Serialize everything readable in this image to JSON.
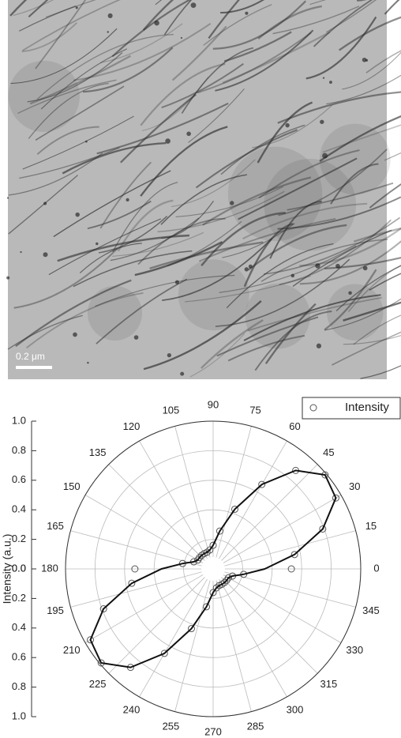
{
  "chart_data": {
    "type": "polar",
    "scale_bar": "0.2 μm",
    "y_label": "Intensity (a.u.)",
    "rlim": [
      0,
      1.0
    ],
    "rticks": [
      {
        "value": 0,
        "label": "0.0"
      },
      {
        "value": 0.2,
        "label": "0.2"
      },
      {
        "value": 0.4,
        "label": "0.4"
      },
      {
        "value": 0.6,
        "label": "0.6"
      },
      {
        "value": 0.8,
        "label": "0.8"
      },
      {
        "value": 1.0,
        "label": "1.0"
      }
    ],
    "thetaticks": [
      0,
      15,
      30,
      45,
      60,
      75,
      90,
      105,
      120,
      135,
      150,
      165,
      180,
      195,
      210,
      225,
      240,
      255,
      270,
      285,
      300,
      315,
      330,
      345
    ],
    "grid": true,
    "legend": "upper right",
    "theta": [
      0,
      10,
      20,
      30,
      40,
      50,
      60,
      70,
      80,
      90,
      100,
      110,
      120,
      130,
      140,
      150,
      160,
      170,
      180,
      190,
      200,
      210,
      220,
      230,
      240,
      250,
      260,
      270,
      280,
      290,
      300,
      310,
      320,
      330,
      340,
      350
    ],
    "series": [
      {
        "name": "Intensity",
        "color": "#555555",
        "marker": "circle",
        "values": [
          0.53,
          0.56,
          0.79,
          0.96,
          0.99,
          0.87,
          0.66,
          0.43,
          0.26,
          0.16,
          0.13,
          0.12,
          0.12,
          0.12,
          0.12,
          0.12,
          0.14,
          0.21,
          0.53,
          0.56,
          0.79,
          0.96,
          0.99,
          0.87,
          0.66,
          0.43,
          0.26,
          0.16,
          0.13,
          0.12,
          0.12,
          0.12,
          0.12,
          0.12,
          0.14,
          0.21
        ]
      },
      {
        "color": "#111111",
        "marker": "line",
        "values": [
          0.35,
          0.56,
          0.79,
          0.96,
          0.99,
          0.87,
          0.66,
          0.43,
          0.26,
          0.16,
          0.13,
          0.12,
          0.12,
          0.12,
          0.12,
          0.12,
          0.14,
          0.21,
          0.35,
          0.56,
          0.79,
          0.96,
          0.99,
          0.87,
          0.66,
          0.43,
          0.26,
          0.16,
          0.13,
          0.12,
          0.12,
          0.12,
          0.12,
          0.12,
          0.14,
          0.21
        ]
      }
    ]
  }
}
